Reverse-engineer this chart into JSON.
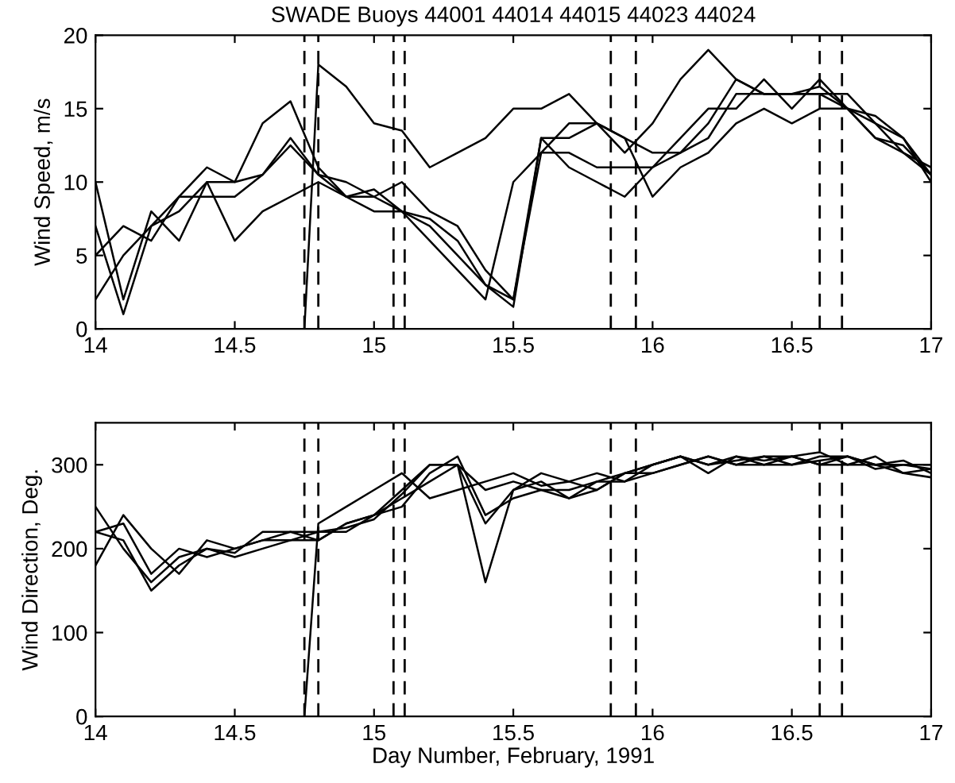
{
  "chart_data": [
    {
      "type": "line",
      "title": "SWADE Buoys 44001 44014 44015 44023 44024",
      "ylabel": "Wind Speed, m/s",
      "x": [
        14.0,
        14.1,
        14.2,
        14.3,
        14.4,
        14.5,
        14.6,
        14.7,
        14.8,
        14.9,
        15.0,
        15.1,
        15.2,
        15.3,
        15.4,
        15.5,
        15.6,
        15.7,
        15.8,
        15.9,
        16.0,
        16.1,
        16.2,
        16.3,
        16.4,
        16.5,
        16.6,
        16.7,
        16.8,
        16.9,
        17.0
      ],
      "series": [
        {
          "color": "#000000",
          "x": [
            14.75,
            14.8,
            14.9,
            15.0,
            15.1,
            15.2,
            15.3,
            15.4,
            15.5,
            15.6,
            15.7,
            15.8,
            15.9,
            16.0,
            16.1,
            16.2,
            16.3,
            16.4,
            16.5,
            16.6,
            16.7,
            16.8,
            16.9,
            17.0
          ],
          "values": [
            0,
            18,
            16.5,
            14,
            13.5,
            11,
            12,
            13,
            15,
            15,
            16,
            14,
            12,
            14,
            17,
            19,
            17,
            16,
            16,
            16,
            15,
            14,
            12,
            10.5
          ]
        },
        {
          "color": "#000000",
          "values": [
            10,
            2,
            8,
            6,
            10,
            10,
            14,
            15.5,
            11,
            9,
            9,
            8,
            7,
            5,
            3,
            1.5,
            13,
            13,
            14,
            13,
            12,
            12,
            14,
            17,
            16,
            16,
            16.5,
            15,
            13,
            12.5,
            10.5
          ]
        },
        {
          "color": "#000000",
          "values": [
            7,
            1,
            7,
            9,
            11,
            10,
            10.5,
            13,
            10.5,
            9,
            8,
            8,
            6,
            4,
            2,
            10,
            12,
            12,
            11,
            11,
            11,
            13,
            15,
            15,
            17,
            15,
            17,
            15,
            13,
            12,
            11
          ]
        },
        {
          "color": "#000000",
          "values": [
            5,
            7,
            6,
            9,
            9,
            9,
            10.5,
            12.5,
            10.5,
            10,
            9,
            10,
            8,
            7,
            4,
            2,
            13,
            11,
            10,
            9,
            11,
            12,
            13,
            16,
            16,
            16,
            16,
            16,
            14,
            13,
            10.5
          ]
        },
        {
          "color": "#000000",
          "values": [
            2,
            5,
            7,
            8,
            10,
            6,
            8,
            9,
            10,
            9,
            9.5,
            8,
            7.5,
            6,
            3,
            2,
            12,
            14,
            14,
            13,
            9,
            11,
            12,
            14,
            15,
            14,
            15,
            15,
            14.5,
            13,
            10
          ]
        }
      ],
      "xlim": [
        14,
        17
      ],
      "xticks": [
        14,
        14.5,
        15,
        15.5,
        16,
        16.5,
        17
      ],
      "ylim": [
        0,
        20
      ],
      "yticks": [
        0,
        5,
        10,
        15,
        20
      ],
      "ref_lines": [
        {
          "axis": "x",
          "value": 14.75,
          "color": "#000000",
          "line_style": "dashed"
        },
        {
          "axis": "x",
          "value": 14.8,
          "color": "#000000",
          "line_style": "dashed"
        },
        {
          "axis": "x",
          "value": 15.07,
          "color": "#000000",
          "line_style": "dashed"
        },
        {
          "axis": "x",
          "value": 15.11,
          "color": "#000000",
          "line_style": "dashed"
        },
        {
          "axis": "x",
          "value": 15.85,
          "color": "#000000",
          "line_style": "dashed"
        },
        {
          "axis": "x",
          "value": 15.94,
          "color": "#000000",
          "line_style": "dashed"
        },
        {
          "axis": "x",
          "value": 16.6,
          "color": "#000000",
          "line_style": "dashed"
        },
        {
          "axis": "x",
          "value": 16.68,
          "color": "#000000",
          "line_style": "dashed"
        }
      ],
      "grid": false,
      "marker": "none",
      "line_style": "solid"
    },
    {
      "type": "line",
      "ylabel": "Wind Direction, Deg.",
      "xlabel": "Day Number, February, 1991",
      "x": [
        14.0,
        14.1,
        14.2,
        14.3,
        14.4,
        14.5,
        14.6,
        14.7,
        14.8,
        14.9,
        15.0,
        15.1,
        15.2,
        15.3,
        15.4,
        15.5,
        15.6,
        15.7,
        15.8,
        15.9,
        16.0,
        16.1,
        16.2,
        16.3,
        16.4,
        16.5,
        16.6,
        16.7,
        16.8,
        16.9,
        17.0
      ],
      "series": [
        {
          "color": "#000000",
          "x": [
            14.75,
            14.8,
            14.9,
            15.0,
            15.1,
            15.2,
            15.3,
            15.4,
            15.5,
            15.6,
            15.7,
            15.8,
            15.9,
            16.0,
            16.1,
            16.2,
            16.3,
            16.4,
            16.5,
            16.6,
            16.7,
            16.8,
            16.9,
            17.0
          ],
          "values": [
            0,
            230,
            250,
            270,
            290,
            260,
            270,
            280,
            290,
            275,
            280,
            290,
            280,
            300,
            310,
            300,
            305,
            310,
            300,
            305,
            310,
            300,
            300,
            295
          ]
        },
        {
          "color": "#000000",
          "values": [
            220,
            230,
            170,
            200,
            190,
            200,
            210,
            220,
            210,
            230,
            240,
            260,
            280,
            300,
            270,
            280,
            270,
            260,
            270,
            290,
            300,
            310,
            300,
            310,
            305,
            310,
            300,
            310,
            300,
            305,
            290
          ]
        },
        {
          "color": "#000000",
          "values": [
            180,
            240,
            200,
            170,
            210,
            200,
            210,
            210,
            210,
            230,
            240,
            250,
            290,
            310,
            240,
            260,
            270,
            270,
            280,
            290,
            290,
            300,
            310,
            300,
            310,
            310,
            315,
            300,
            300,
            290,
            285
          ]
        },
        {
          "color": "#000000",
          "values": [
            250,
            200,
            160,
            190,
            200,
            195,
            220,
            220,
            220,
            220,
            240,
            270,
            300,
            300,
            160,
            270,
            280,
            260,
            280,
            280,
            290,
            300,
            310,
            300,
            300,
            300,
            310,
            310,
            295,
            300,
            300
          ]
        },
        {
          "color": "#000000",
          "values": [
            220,
            210,
            150,
            180,
            200,
            190,
            200,
            210,
            220,
            225,
            235,
            265,
            300,
            300,
            230,
            270,
            290,
            280,
            270,
            290,
            300,
            310,
            290,
            310,
            300,
            310,
            300,
            300,
            310,
            290,
            295
          ]
        }
      ],
      "xlim": [
        14,
        17
      ],
      "xticks": [
        14,
        14.5,
        15,
        15.5,
        16,
        16.5,
        17
      ],
      "ylim": [
        0,
        350
      ],
      "yticks": [
        0,
        100,
        200,
        300
      ],
      "ref_lines": [
        {
          "axis": "x",
          "value": 14.75,
          "color": "#000000",
          "line_style": "dashed"
        },
        {
          "axis": "x",
          "value": 14.8,
          "color": "#000000",
          "line_style": "dashed"
        },
        {
          "axis": "x",
          "value": 15.07,
          "color": "#000000",
          "line_style": "dashed"
        },
        {
          "axis": "x",
          "value": 15.11,
          "color": "#000000",
          "line_style": "dashed"
        },
        {
          "axis": "x",
          "value": 15.85,
          "color": "#000000",
          "line_style": "dashed"
        },
        {
          "axis": "x",
          "value": 15.94,
          "color": "#000000",
          "line_style": "dashed"
        },
        {
          "axis": "x",
          "value": 16.6,
          "color": "#000000",
          "line_style": "dashed"
        },
        {
          "axis": "x",
          "value": 16.68,
          "color": "#000000",
          "line_style": "dashed"
        }
      ],
      "grid": false,
      "marker": "none",
      "line_style": "solid"
    }
  ]
}
